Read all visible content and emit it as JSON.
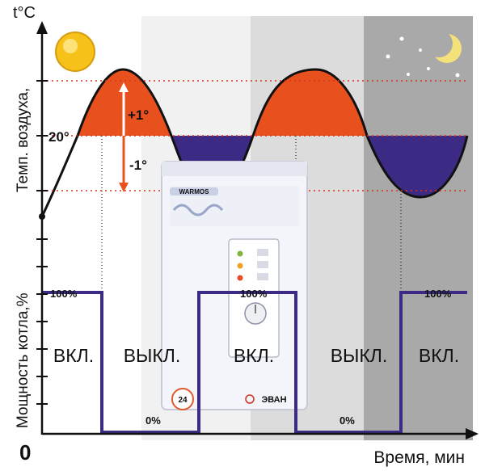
{
  "y_axis_unit": "t°C",
  "temp_axis_label": "Темп. воздуха,",
  "power_axis_label": "Мощность котла,%",
  "x_axis_label": "Время, мин",
  "origin_label": "0",
  "setpoint_label": "20°",
  "upper_delta_label": "+1°",
  "lower_delta_label": "-1°",
  "power_on_label": "100%",
  "power_off_label": "0%",
  "phases": [
    "ВКЛ.",
    "ВЫКЛ.",
    "ВКЛ.",
    "ВЫКЛ.",
    "ВКЛ."
  ],
  "boiler": {
    "brand_badge": "WARMOS",
    "maker": "ЭВАН",
    "sticker": "24"
  },
  "colors": {
    "heating_fill": "#e8501e",
    "cooling_fill": "#3c2a84",
    "power_line": "#3c2a84",
    "guide_line": "#d9321f"
  },
  "icons": [
    "sun-icon",
    "moon-icon",
    "stars-icon"
  ]
}
